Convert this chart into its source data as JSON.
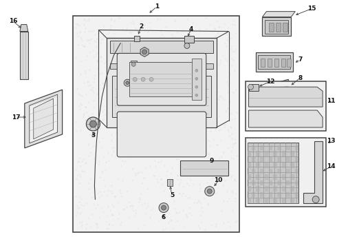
{
  "bg_color": "#ffffff",
  "fig_width": 4.9,
  "fig_height": 3.6,
  "dpi": 100,
  "line_color": "#444444",
  "text_color": "#111111",
  "panel_bg": "#ebebeb",
  "panel_border": "#555555"
}
